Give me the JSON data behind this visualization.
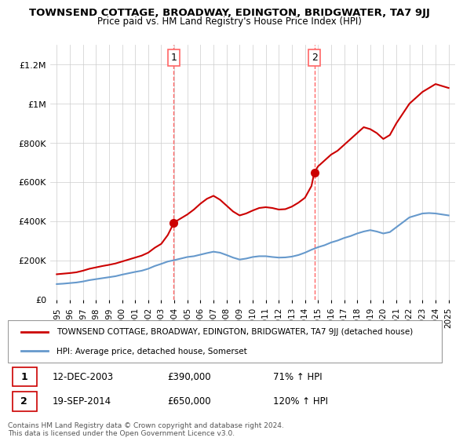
{
  "title": "TOWNSEND COTTAGE, BROADWAY, EDINGTON, BRIDGWATER, TA7 9JJ",
  "subtitle": "Price paid vs. HM Land Registry's House Price Index (HPI)",
  "red_label": "TOWNSEND COTTAGE, BROADWAY, EDINGTON, BRIDGWATER, TA7 9JJ (detached house)",
  "blue_label": "HPI: Average price, detached house, Somerset",
  "transaction1_label": "1",
  "transaction1_date": "12-DEC-2003",
  "transaction1_price": "£390,000",
  "transaction1_hpi": "71% ↑ HPI",
  "transaction1_x": 2003.95,
  "transaction1_y": 390000,
  "transaction2_label": "2",
  "transaction2_date": "19-SEP-2014",
  "transaction2_price": "£650,000",
  "transaction2_hpi": "120% ↑ HPI",
  "transaction2_x": 2014.72,
  "transaction2_y": 650000,
  "footer": "Contains HM Land Registry data © Crown copyright and database right 2024.\nThis data is licensed under the Open Government Licence v3.0.",
  "red_color": "#cc0000",
  "blue_color": "#6699cc",
  "dashed_red": "#ff6666",
  "background_chart": "#ffffff",
  "background_legend": "#ffffff",
  "xlim_left": 1994.5,
  "xlim_right": 2025.5,
  "ylim_bottom": 0,
  "ylim_top": 1300000,
  "yticks": [
    0,
    200000,
    400000,
    600000,
    800000,
    1000000,
    1200000
  ],
  "ytick_labels": [
    "£0",
    "£200K",
    "£400K",
    "£600K",
    "£800K",
    "£1M",
    "£1.2M"
  ],
  "xticks": [
    1995,
    1996,
    1997,
    1998,
    1999,
    2000,
    2001,
    2002,
    2003,
    2004,
    2005,
    2006,
    2007,
    2008,
    2009,
    2010,
    2011,
    2012,
    2013,
    2014,
    2015,
    2016,
    2017,
    2018,
    2019,
    2020,
    2021,
    2022,
    2023,
    2024,
    2025
  ],
  "red_x": [
    1995.0,
    1995.5,
    1996.0,
    1996.5,
    1997.0,
    1997.5,
    1998.0,
    1998.5,
    1999.0,
    1999.5,
    2000.0,
    2000.5,
    2001.0,
    2001.5,
    2002.0,
    2002.5,
    2003.0,
    2003.5,
    2003.95,
    2004.0,
    2004.5,
    2005.0,
    2005.5,
    2006.0,
    2006.5,
    2007.0,
    2007.5,
    2008.0,
    2008.5,
    2009.0,
    2009.5,
    2010.0,
    2010.5,
    2011.0,
    2011.5,
    2012.0,
    2012.5,
    2013.0,
    2013.5,
    2014.0,
    2014.5,
    2014.72,
    2015.0,
    2015.5,
    2016.0,
    2016.5,
    2017.0,
    2017.5,
    2018.0,
    2018.5,
    2019.0,
    2019.5,
    2020.0,
    2020.5,
    2021.0,
    2021.5,
    2022.0,
    2022.5,
    2023.0,
    2023.5,
    2024.0,
    2024.5,
    2025.0
  ],
  "red_y": [
    130000,
    133000,
    136000,
    140000,
    148000,
    158000,
    165000,
    172000,
    178000,
    185000,
    195000,
    205000,
    215000,
    225000,
    240000,
    265000,
    285000,
    330000,
    390000,
    395000,
    415000,
    435000,
    460000,
    490000,
    515000,
    530000,
    510000,
    480000,
    450000,
    430000,
    440000,
    455000,
    468000,
    472000,
    468000,
    460000,
    462000,
    475000,
    495000,
    520000,
    580000,
    650000,
    680000,
    710000,
    740000,
    760000,
    790000,
    820000,
    850000,
    880000,
    870000,
    850000,
    820000,
    840000,
    900000,
    950000,
    1000000,
    1030000,
    1060000,
    1080000,
    1100000,
    1090000,
    1080000
  ],
  "blue_x": [
    1995.0,
    1995.5,
    1996.0,
    1996.5,
    1997.0,
    1997.5,
    1998.0,
    1998.5,
    1999.0,
    1999.5,
    2000.0,
    2000.5,
    2001.0,
    2001.5,
    2002.0,
    2002.5,
    2003.0,
    2003.5,
    2004.0,
    2004.5,
    2005.0,
    2005.5,
    2006.0,
    2006.5,
    2007.0,
    2007.5,
    2008.0,
    2008.5,
    2009.0,
    2009.5,
    2010.0,
    2010.5,
    2011.0,
    2011.5,
    2012.0,
    2012.5,
    2013.0,
    2013.5,
    2014.0,
    2014.5,
    2015.0,
    2015.5,
    2016.0,
    2016.5,
    2017.0,
    2017.5,
    2018.0,
    2018.5,
    2019.0,
    2019.5,
    2020.0,
    2020.5,
    2021.0,
    2021.5,
    2022.0,
    2022.5,
    2023.0,
    2023.5,
    2024.0,
    2024.5,
    2025.0
  ],
  "blue_y": [
    80000,
    82000,
    85000,
    88000,
    93000,
    100000,
    105000,
    110000,
    115000,
    120000,
    128000,
    135000,
    142000,
    148000,
    158000,
    172000,
    183000,
    195000,
    202000,
    210000,
    218000,
    222000,
    230000,
    238000,
    245000,
    240000,
    228000,
    215000,
    205000,
    210000,
    218000,
    222000,
    222000,
    218000,
    215000,
    216000,
    220000,
    228000,
    240000,
    255000,
    268000,
    278000,
    292000,
    302000,
    315000,
    325000,
    338000,
    348000,
    355000,
    348000,
    338000,
    345000,
    370000,
    395000,
    420000,
    430000,
    440000,
    442000,
    440000,
    435000,
    430000
  ]
}
